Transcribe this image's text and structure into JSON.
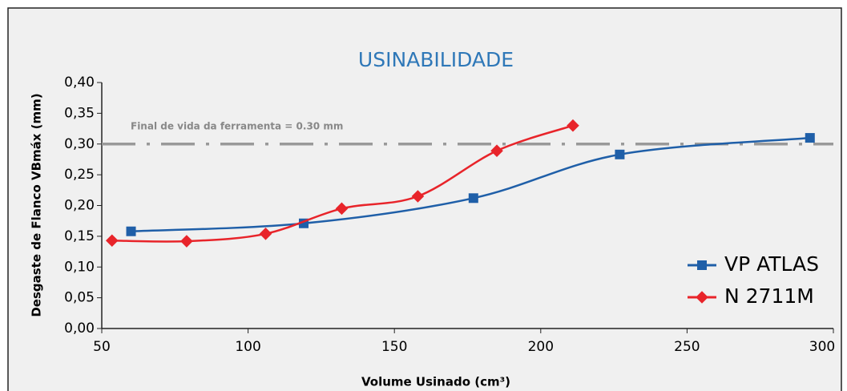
{
  "chart_data": {
    "type": "line",
    "title": "USINABILIDADE",
    "x_label": "Volume Usinado (cm³)",
    "y_label": "Desgaste de Flanco VBmáx (mm)",
    "xlim": [
      50,
      300
    ],
    "xticks": [
      50,
      100,
      150,
      200,
      250,
      300
    ],
    "ylim": [
      0,
      0.4
    ],
    "yticks": [
      {
        "value": 0,
        "label": "0,00"
      },
      {
        "value": 0.05,
        "label": "0,05"
      },
      {
        "value": 0.1,
        "label": "0,10"
      },
      {
        "value": 0.15,
        "label": "0,15"
      },
      {
        "value": 0.2,
        "label": "0,20"
      },
      {
        "value": 0.25,
        "label": "0,25"
      },
      {
        "value": 0.3,
        "label": "0,30"
      },
      {
        "value": 0.35,
        "label": "0,35"
      },
      {
        "value": 0.4,
        "label": "0,40"
      }
    ],
    "annotations": [
      {
        "text": "Final de vida da ferramenta = 0.30 mm",
        "value": 0.3
      }
    ],
    "legend": "lower right",
    "series": [
      {
        "name": "VP ATLAS",
        "color": "#1f5fa8",
        "marker": "square",
        "x": [
          60,
          119,
          177,
          227,
          292
        ],
        "values": [
          0.158,
          0.171,
          0.212,
          0.283,
          0.31
        ]
      },
      {
        "name": "N 2711M",
        "color": "#e8242a",
        "marker": "diamond",
        "x": [
          53.5,
          79,
          106,
          132,
          158,
          185,
          211
        ],
        "values": [
          0.143,
          0.142,
          0.154,
          0.195,
          0.215,
          0.289,
          0.33
        ]
      }
    ]
  }
}
